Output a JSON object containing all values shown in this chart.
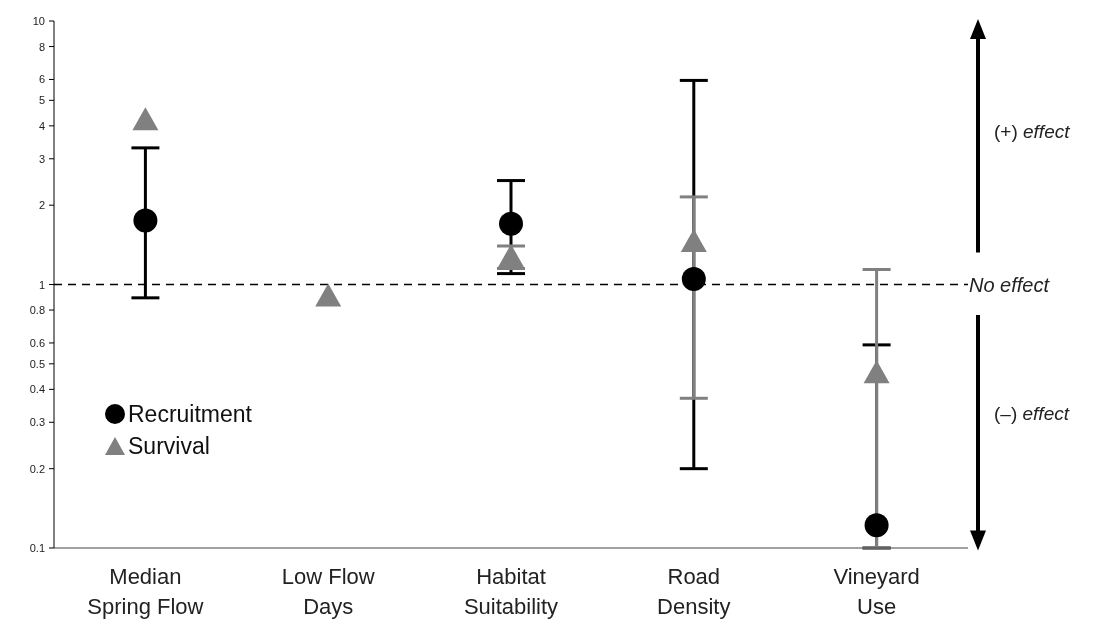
{
  "chart_data": {
    "type": "scatter",
    "categories": [
      "Median\nSpring Flow",
      "Low Flow\nDays",
      "Habitat\nSuitability",
      "Road\nDensity",
      "Vineyard\nUse"
    ],
    "series": [
      {
        "name": "Recruitment",
        "color": "#000000",
        "marker": "circle",
        "values": [
          1.75,
          null,
          1.7,
          1.05,
          0.122
        ],
        "errors": [
          [
            0.89,
            3.3
          ],
          null,
          [
            1.1,
            2.48
          ],
          [
            0.2,
            5.95
          ],
          [
            0.1,
            0.59
          ]
        ]
      },
      {
        "name": "Survival",
        "color": "#808080",
        "marker": "triangle",
        "values": [
          4.2,
          0.9,
          1.27,
          1.45,
          0.46
        ],
        "errors": [
          null,
          null,
          [
            1.15,
            1.4
          ],
          [
            0.37,
            2.15
          ],
          [
            0.1,
            1.14
          ]
        ]
      }
    ],
    "log": "y",
    "ylim": [
      0.1,
      10
    ],
    "yticks": [
      0.1,
      0.2,
      0.3,
      0.4,
      0.5,
      0.6,
      0.8,
      1,
      2,
      3,
      4,
      5,
      6,
      8,
      10
    ],
    "ref_lines": [
      {
        "axis": "y",
        "value": 1,
        "label": "No effect",
        "line_style": "dashed",
        "color": "#000000"
      }
    ],
    "annotations": [
      "(+) effect",
      "(–) effect"
    ],
    "legend": "bottom left",
    "grid": false
  }
}
